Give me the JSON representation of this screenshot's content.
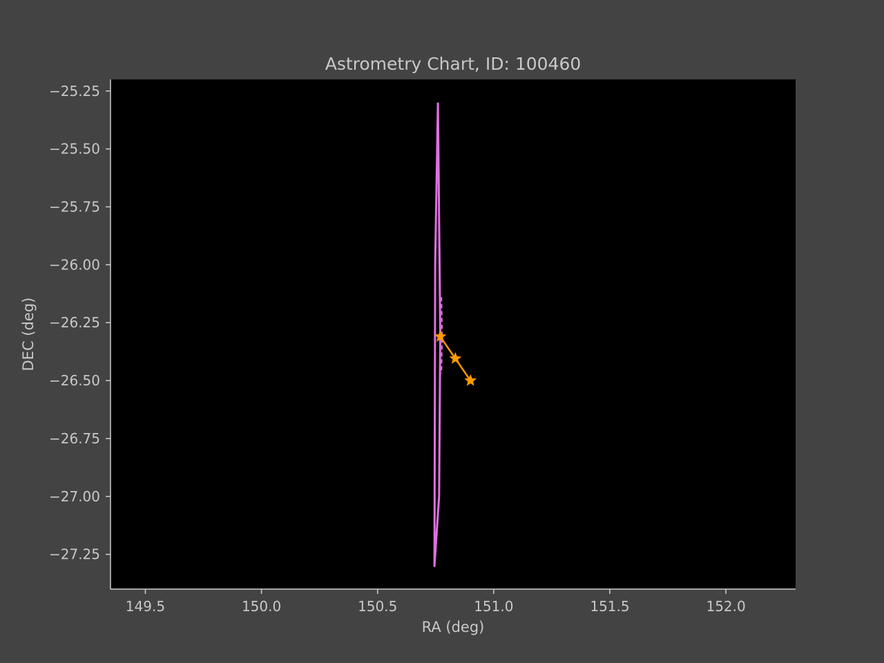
{
  "chart_data": {
    "type": "line",
    "title": "Astrometry Chart, ID: 100460",
    "xlabel": "RA (deg)",
    "ylabel": "DEC (deg)",
    "xlim": [
      149.35,
      152.3
    ],
    "ylim": [
      -27.4,
      -25.2
    ],
    "x_ticks": [
      149.5,
      150.0,
      150.5,
      151.0,
      151.5,
      152.0
    ],
    "x_tick_labels": [
      "149.5",
      "150.0",
      "150.5",
      "151.0",
      "151.5",
      "152.0"
    ],
    "y_ticks": [
      -25.25,
      -25.5,
      -25.75,
      -26.0,
      -26.25,
      -26.5,
      -26.75,
      -27.0,
      -27.25
    ],
    "y_tick_labels": [
      "−25.25",
      "−25.50",
      "−25.75",
      "−26.00",
      "−26.25",
      "−26.50",
      "−26.75",
      "−27.00",
      "−27.25"
    ],
    "grid": false,
    "colors": {
      "figure_bg": "#434343",
      "plot_bg": "#000000",
      "text": "#c8c8c8",
      "spine": "#d0d0d0",
      "ellipse": "#e070e0",
      "track": "#ff9a00"
    },
    "series": [
      {
        "kind": "outline",
        "x": [
          150.76,
          150.77,
          150.765,
          150.745,
          150.748,
          150.76
        ],
        "y": [
          -25.3,
          -26.3,
          -27.0,
          -27.3,
          -26.0,
          -25.3
        ]
      },
      {
        "kind": "dashed",
        "x": [
          150.775,
          150.778,
          150.775
        ],
        "y": [
          -26.14,
          -26.3,
          -26.47
        ]
      },
      {
        "kind": "track",
        "marker": "star",
        "x": [
          150.77,
          150.835,
          150.9
        ],
        "y": [
          -26.31,
          -26.405,
          -26.5
        ]
      }
    ]
  }
}
